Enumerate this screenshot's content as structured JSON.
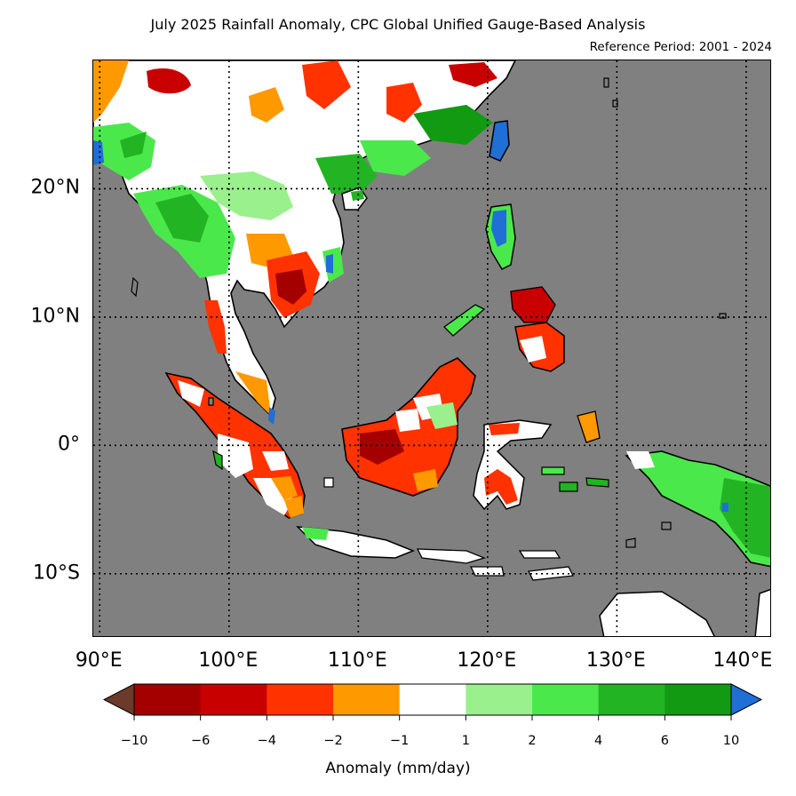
{
  "title": "July 2025 Rainfall Anomaly, CPC Global Unified Gauge-Based Analysis",
  "subtitle": "Reference Period: 2001 - 2024",
  "map": {
    "lon_range": [
      89.5,
      142
    ],
    "lat_range": [
      -15,
      30
    ],
    "background_color": "#808080",
    "grid_lines": "dotted",
    "lon_ticks": [
      {
        "value": 90,
        "label": "90°E"
      },
      {
        "value": 100,
        "label": "100°E"
      },
      {
        "value": 110,
        "label": "110°E"
      },
      {
        "value": 120,
        "label": "120°E"
      },
      {
        "value": 130,
        "label": "130°E"
      },
      {
        "value": 140,
        "label": "140°E"
      }
    ],
    "lat_ticks": [
      {
        "value": 20,
        "label": "20°N"
      },
      {
        "value": 10,
        "label": "10°N"
      },
      {
        "value": 0,
        "label": "0°"
      },
      {
        "value": -10,
        "label": "10°S"
      }
    ]
  },
  "colorbar": {
    "label": "Anomaly (mm/day)",
    "tick_labels": [
      "−10",
      "−6",
      "−4",
      "−2",
      "−1",
      "1",
      "2",
      "4",
      "6",
      "10"
    ],
    "colors": [
      "#a50000",
      "#c80000",
      "#ff3200",
      "#ff9900",
      "#ffffff",
      "#99f08c",
      "#4be84b",
      "#22b422",
      "#129a12"
    ],
    "under_color": "#6b3a2a",
    "over_color": "#1f6fd6"
  }
}
